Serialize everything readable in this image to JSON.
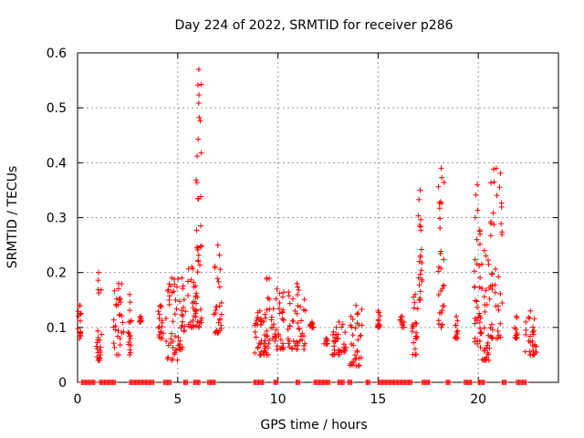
{
  "chart_data": {
    "type": "scatter",
    "title": "Day 224 of 2022, SRMTID for receiver p286",
    "xlabel": "GPS time / hours",
    "ylabel": "SRMTID / TECUs",
    "xlim": [
      0,
      24
    ],
    "ylim": [
      0,
      0.6
    ],
    "xticks": [
      0,
      5,
      10,
      15,
      20
    ],
    "xtick_labels": [
      "0",
      "5",
      "10",
      "15",
      "20"
    ],
    "yticks": [
      0,
      0.1,
      0.2,
      0.3,
      0.4,
      0.5,
      0.6
    ],
    "ytick_labels": [
      "0",
      "0.1",
      "0.2",
      "0.3",
      "0.4",
      "0.5",
      "0.6"
    ],
    "grid": true,
    "marker": "+",
    "series": [
      {
        "name": "SRMTID",
        "color": "#ff0000",
        "clusters": [
          {
            "x": [
              0.0,
              0.2
            ],
            "y": [
              0.08,
              0.14
            ]
          },
          {
            "x": [
              0.9,
              1.2
            ],
            "y": [
              0.04,
              0.2
            ]
          },
          {
            "x": [
              1.8,
              2.3
            ],
            "y": [
              0.05,
              0.18
            ]
          },
          {
            "x": [
              2.5,
              2.7
            ],
            "y": [
              0.05,
              0.16
            ]
          },
          {
            "x": [
              3.1,
              3.2
            ],
            "y": [
              0.11,
              0.12
            ]
          },
          {
            "x": [
              4.0,
              4.3
            ],
            "y": [
              0.08,
              0.14
            ]
          },
          {
            "x": [
              4.4,
              5.0
            ],
            "y": [
              0.04,
              0.19
            ]
          },
          {
            "x": [
              5.0,
              5.4
            ],
            "y": [
              0.06,
              0.19
            ]
          },
          {
            "x": [
              5.5,
              5.9
            ],
            "y": [
              0.1,
              0.21
            ]
          },
          {
            "x": [
              5.9,
              6.2
            ],
            "y": [
              0.1,
              0.57
            ]
          },
          {
            "x": [
              6.8,
              7.2
            ],
            "y": [
              0.09,
              0.25
            ]
          },
          {
            "x": [
              8.8,
              9.4
            ],
            "y": [
              0.05,
              0.13
            ]
          },
          {
            "x": [
              9.3,
              9.6
            ],
            "y": [
              0.05,
              0.19
            ]
          },
          {
            "x": [
              9.6,
              10.3
            ],
            "y": [
              0.06,
              0.17
            ]
          },
          {
            "x": [
              10.5,
              11.4
            ],
            "y": [
              0.06,
              0.18
            ]
          },
          {
            "x": [
              11.6,
              11.8
            ],
            "y": [
              0.1,
              0.11
            ]
          },
          {
            "x": [
              12.3,
              12.5
            ],
            "y": [
              0.07,
              0.08
            ]
          },
          {
            "x": [
              12.7,
              13.4
            ],
            "y": [
              0.05,
              0.11
            ]
          },
          {
            "x": [
              13.6,
              14.2
            ],
            "y": [
              0.03,
              0.14
            ]
          },
          {
            "x": [
              14.9,
              15.1
            ],
            "y": [
              0.1,
              0.13
            ]
          },
          {
            "x": [
              16.1,
              16.3
            ],
            "y": [
              0.1,
              0.12
            ]
          },
          {
            "x": [
              16.7,
              17.0
            ],
            "y": [
              0.05,
              0.16
            ]
          },
          {
            "x": [
              17.0,
              17.2
            ],
            "y": [
              0.15,
              0.35
            ]
          },
          {
            "x": [
              18.0,
              18.3
            ],
            "y": [
              0.1,
              0.39
            ]
          },
          {
            "x": [
              18.8,
              19.0
            ],
            "y": [
              0.08,
              0.12
            ]
          },
          {
            "x": [
              19.8,
              20.1
            ],
            "y": [
              0.07,
              0.36
            ]
          },
          {
            "x": [
              20.0,
              20.6
            ],
            "y": [
              0.04,
              0.24
            ]
          },
          {
            "x": [
              20.6,
              21.2
            ],
            "y": [
              0.08,
              0.39
            ]
          },
          {
            "x": [
              21.8,
              22.0
            ],
            "y": [
              0.08,
              0.12
            ]
          },
          {
            "x": [
              22.3,
              22.9
            ],
            "y": [
              0.05,
              0.13
            ]
          }
        ],
        "zero_segments": [
          [
            0.2,
            0.9
          ],
          [
            1.1,
            1.9
          ],
          [
            2.6,
            3.8
          ],
          [
            4.3,
            4.7
          ],
          [
            5.3,
            5.5
          ],
          [
            5.8,
            6.1
          ],
          [
            6.5,
            6.9
          ],
          [
            8.8,
            9.3
          ],
          [
            9.8,
            10.0
          ],
          [
            10.9,
            11.1
          ],
          [
            11.8,
            12.6
          ],
          [
            13.0,
            13.3
          ],
          [
            13.5,
            13.7
          ],
          [
            14.4,
            14.6
          ],
          [
            15.0,
            16.7
          ],
          [
            17.2,
            17.6
          ],
          [
            18.4,
            18.6
          ],
          [
            19.3,
            19.7
          ],
          [
            20.0,
            20.3
          ],
          [
            21.2,
            21.4
          ],
          [
            21.9,
            22.4
          ]
        ]
      }
    ]
  }
}
